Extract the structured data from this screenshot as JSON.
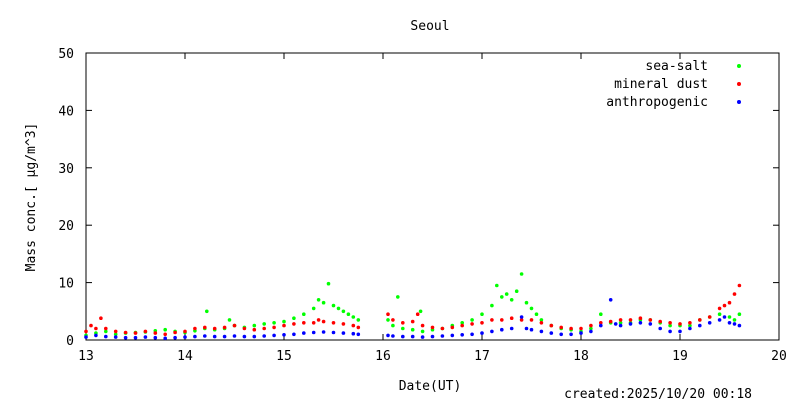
{
  "chart_data": {
    "type": "scatter",
    "title": "Seoul",
    "xlabel": "Date(UT)",
    "ylabel": "Mass conc.[ μg/m^3]",
    "xlim": [
      13,
      20
    ],
    "ylim": [
      0,
      50
    ],
    "x_ticks": [
      13,
      14,
      15,
      16,
      17,
      18,
      19,
      20
    ],
    "y_ticks": [
      0,
      10,
      20,
      30,
      40,
      50
    ],
    "grid": false,
    "legend_position": "top-right",
    "footer": "created:2025/10/20 00:18",
    "series": [
      {
        "name": "sea-salt",
        "color": "#00ff00",
        "points": [
          [
            13.0,
            0.8
          ],
          [
            13.1,
            1.2
          ],
          [
            13.2,
            1.5
          ],
          [
            13.3,
            1.0
          ],
          [
            13.4,
            1.2
          ],
          [
            13.5,
            1.3
          ],
          [
            13.6,
            1.4
          ],
          [
            13.7,
            1.6
          ],
          [
            13.8,
            1.8
          ],
          [
            13.9,
            1.5
          ],
          [
            14.0,
            1.3
          ],
          [
            14.1,
            1.6
          ],
          [
            14.2,
            2.0
          ],
          [
            14.22,
            5.0
          ],
          [
            14.3,
            1.8
          ],
          [
            14.4,
            2.0
          ],
          [
            14.45,
            3.5
          ],
          [
            14.5,
            2.5
          ],
          [
            14.6,
            2.2
          ],
          [
            14.7,
            2.5
          ],
          [
            14.8,
            2.8
          ],
          [
            14.9,
            3.0
          ],
          [
            15.0,
            3.2
          ],
          [
            15.1,
            3.8
          ],
          [
            15.2,
            4.5
          ],
          [
            15.3,
            5.5
          ],
          [
            15.35,
            7.0
          ],
          [
            15.4,
            6.5
          ],
          [
            15.45,
            9.8
          ],
          [
            15.5,
            6.0
          ],
          [
            15.55,
            5.5
          ],
          [
            15.6,
            5.0
          ],
          [
            15.65,
            4.5
          ],
          [
            15.7,
            4.0
          ],
          [
            15.75,
            3.5
          ],
          [
            16.05,
            3.5
          ],
          [
            16.1,
            2.5
          ],
          [
            16.15,
            7.5
          ],
          [
            16.2,
            2.0
          ],
          [
            16.3,
            1.8
          ],
          [
            16.38,
            5.0
          ],
          [
            16.4,
            1.5
          ],
          [
            16.5,
            1.8
          ],
          [
            16.6,
            2.0
          ],
          [
            16.7,
            2.5
          ],
          [
            16.8,
            3.0
          ],
          [
            16.9,
            3.5
          ],
          [
            17.0,
            4.5
          ],
          [
            17.1,
            6.0
          ],
          [
            17.15,
            9.5
          ],
          [
            17.2,
            7.5
          ],
          [
            17.25,
            8.0
          ],
          [
            17.3,
            7.0
          ],
          [
            17.35,
            8.5
          ],
          [
            17.4,
            11.5
          ],
          [
            17.45,
            6.5
          ],
          [
            17.5,
            5.5
          ],
          [
            17.55,
            4.5
          ],
          [
            17.6,
            3.5
          ],
          [
            17.7,
            2.5
          ],
          [
            17.8,
            2.0
          ],
          [
            17.9,
            1.8
          ],
          [
            18.0,
            1.5
          ],
          [
            18.1,
            2.0
          ],
          [
            18.2,
            4.5
          ],
          [
            18.3,
            3.0
          ],
          [
            18.4,
            3.0
          ],
          [
            18.5,
            3.0
          ],
          [
            18.6,
            3.5
          ],
          [
            18.7,
            3.5
          ],
          [
            18.8,
            3.0
          ],
          [
            18.9,
            2.5
          ],
          [
            19.0,
            2.5
          ],
          [
            19.1,
            2.5
          ],
          [
            19.2,
            3.5
          ],
          [
            19.3,
            4.0
          ],
          [
            19.4,
            4.5
          ],
          [
            19.5,
            4.0
          ],
          [
            19.55,
            3.5
          ],
          [
            19.6,
            4.5
          ]
        ]
      },
      {
        "name": "mineral dust",
        "color": "#ff0000",
        "points": [
          [
            13.0,
            1.5
          ],
          [
            13.05,
            2.5
          ],
          [
            13.1,
            2.0
          ],
          [
            13.15,
            3.8
          ],
          [
            13.2,
            2.0
          ],
          [
            13.3,
            1.5
          ],
          [
            13.4,
            1.3
          ],
          [
            13.5,
            1.2
          ],
          [
            13.6,
            1.5
          ],
          [
            13.7,
            1.2
          ],
          [
            13.8,
            1.0
          ],
          [
            13.9,
            1.3
          ],
          [
            14.0,
            1.5
          ],
          [
            14.1,
            2.0
          ],
          [
            14.2,
            2.2
          ],
          [
            14.3,
            2.0
          ],
          [
            14.4,
            2.2
          ],
          [
            14.5,
            2.5
          ],
          [
            14.6,
            2.0
          ],
          [
            14.7,
            1.8
          ],
          [
            14.8,
            2.0
          ],
          [
            14.9,
            2.2
          ],
          [
            15.0,
            2.5
          ],
          [
            15.1,
            2.8
          ],
          [
            15.2,
            3.0
          ],
          [
            15.3,
            3.0
          ],
          [
            15.35,
            3.5
          ],
          [
            15.4,
            3.2
          ],
          [
            15.5,
            3.0
          ],
          [
            15.6,
            2.8
          ],
          [
            15.7,
            2.5
          ],
          [
            15.75,
            2.2
          ],
          [
            16.05,
            4.5
          ],
          [
            16.1,
            3.5
          ],
          [
            16.2,
            3.0
          ],
          [
            16.3,
            3.2
          ],
          [
            16.35,
            4.5
          ],
          [
            16.4,
            2.5
          ],
          [
            16.5,
            2.2
          ],
          [
            16.6,
            2.0
          ],
          [
            16.7,
            2.2
          ],
          [
            16.8,
            2.5
          ],
          [
            16.9,
            2.8
          ],
          [
            17.0,
            3.0
          ],
          [
            17.1,
            3.5
          ],
          [
            17.2,
            3.5
          ],
          [
            17.3,
            3.8
          ],
          [
            17.4,
            3.5
          ],
          [
            17.5,
            3.5
          ],
          [
            17.6,
            3.0
          ],
          [
            17.7,
            2.5
          ],
          [
            17.8,
            2.2
          ],
          [
            17.9,
            2.0
          ],
          [
            18.0,
            2.0
          ],
          [
            18.1,
            2.5
          ],
          [
            18.2,
            3.0
          ],
          [
            18.3,
            3.2
          ],
          [
            18.4,
            3.5
          ],
          [
            18.5,
            3.5
          ],
          [
            18.6,
            3.8
          ],
          [
            18.7,
            3.5
          ],
          [
            18.8,
            3.2
          ],
          [
            18.9,
            3.0
          ],
          [
            19.0,
            2.8
          ],
          [
            19.1,
            3.0
          ],
          [
            19.2,
            3.5
          ],
          [
            19.3,
            4.0
          ],
          [
            19.4,
            5.5
          ],
          [
            19.45,
            6.0
          ],
          [
            19.5,
            6.5
          ],
          [
            19.55,
            8.0
          ],
          [
            19.6,
            9.5
          ]
        ]
      },
      {
        "name": "anthropogenic",
        "color": "#0000ff",
        "points": [
          [
            13.0,
            0.5
          ],
          [
            13.1,
            0.8
          ],
          [
            13.2,
            0.6
          ],
          [
            13.3,
            0.5
          ],
          [
            13.4,
            0.4
          ],
          [
            13.5,
            0.4
          ],
          [
            13.6,
            0.5
          ],
          [
            13.7,
            0.4
          ],
          [
            13.8,
            0.3
          ],
          [
            13.9,
            0.4
          ],
          [
            14.0,
            0.5
          ],
          [
            14.1,
            0.6
          ],
          [
            14.2,
            0.7
          ],
          [
            14.3,
            0.6
          ],
          [
            14.4,
            0.6
          ],
          [
            14.5,
            0.7
          ],
          [
            14.6,
            0.6
          ],
          [
            14.7,
            0.6
          ],
          [
            14.8,
            0.7
          ],
          [
            14.9,
            0.8
          ],
          [
            15.0,
            0.9
          ],
          [
            15.1,
            1.0
          ],
          [
            15.2,
            1.2
          ],
          [
            15.3,
            1.3
          ],
          [
            15.4,
            1.4
          ],
          [
            15.5,
            1.3
          ],
          [
            15.6,
            1.2
          ],
          [
            15.7,
            1.1
          ],
          [
            15.75,
            1.0
          ],
          [
            16.05,
            0.8
          ],
          [
            16.1,
            0.7
          ],
          [
            16.2,
            0.6
          ],
          [
            16.3,
            0.6
          ],
          [
            16.4,
            0.5
          ],
          [
            16.5,
            0.6
          ],
          [
            16.6,
            0.7
          ],
          [
            16.7,
            0.8
          ],
          [
            16.8,
            0.9
          ],
          [
            16.9,
            1.0
          ],
          [
            17.0,
            1.2
          ],
          [
            17.1,
            1.5
          ],
          [
            17.2,
            1.8
          ],
          [
            17.3,
            2.0
          ],
          [
            17.4,
            4.0
          ],
          [
            17.45,
            2.0
          ],
          [
            17.5,
            1.8
          ],
          [
            17.6,
            1.5
          ],
          [
            17.7,
            1.2
          ],
          [
            17.8,
            1.0
          ],
          [
            17.9,
            1.0
          ],
          [
            18.0,
            1.2
          ],
          [
            18.1,
            1.5
          ],
          [
            18.2,
            2.5
          ],
          [
            18.3,
            7.0
          ],
          [
            18.35,
            2.8
          ],
          [
            18.4,
            2.5
          ],
          [
            18.5,
            2.8
          ],
          [
            18.6,
            3.0
          ],
          [
            18.7,
            2.8
          ],
          [
            18.8,
            2.0
          ],
          [
            18.9,
            1.5
          ],
          [
            19.0,
            1.5
          ],
          [
            19.1,
            2.0
          ],
          [
            19.2,
            2.5
          ],
          [
            19.3,
            3.0
          ],
          [
            19.4,
            3.5
          ],
          [
            19.45,
            4.0
          ],
          [
            19.5,
            3.0
          ],
          [
            19.55,
            2.8
          ],
          [
            19.6,
            2.5
          ]
        ]
      }
    ]
  }
}
